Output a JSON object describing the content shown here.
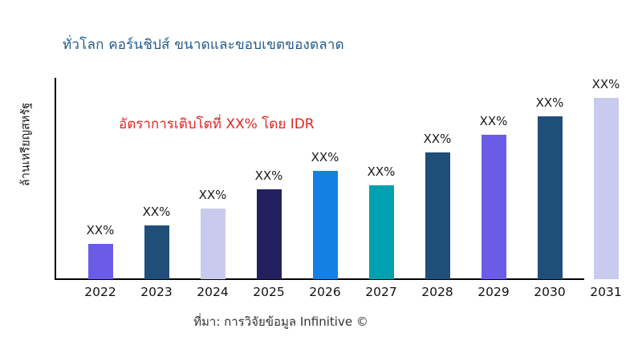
{
  "header": {
    "title": "ทั่วโลก คอร์นชิปส์ ขนาดและขอบเขตของตลาด",
    "title_color": "#1f5a8a"
  },
  "chart_data": {
    "type": "bar",
    "title": "ทั่วโลก คอร์นชิปส์ ขนาดและขอบเขตของตลาด",
    "xlabel": "",
    "ylabel": "ล้านเหรียญสหรัฐ",
    "annotation": {
      "text": "อัตราการเติบโตที่ XX% โดย IDR",
      "color": "#e02424"
    },
    "categories": [
      "2022",
      "2023",
      "2024",
      "2025",
      "2026",
      "2027",
      "2028",
      "2029",
      "2030",
      "2031"
    ],
    "bar_labels": [
      "XX%",
      "XX%",
      "XX%",
      "XX%",
      "XX%",
      "XX%",
      "XX%",
      "XX%",
      "XX%",
      "XX%"
    ],
    "values_rel": [
      44,
      67,
      88,
      112,
      135,
      117,
      158,
      180,
      203,
      226
    ],
    "values_note": "numeric values not shown in chart; heights are estimated relative units (px)",
    "bar_colors": [
      "#6b5ce8",
      "#1f4e79",
      "#c9cbee",
      "#23205f",
      "#1580e4",
      "#00a0b0",
      "#1f4e79",
      "#6b5ce8",
      "#1f4e79",
      "#c9cbee"
    ],
    "legend": "none",
    "gridlines": false,
    "y_ticks": "none",
    "axis_color": "#000000"
  },
  "footer": {
    "source": "ที่มา: การวิจัยข้อมูล Infinitive ©"
  }
}
